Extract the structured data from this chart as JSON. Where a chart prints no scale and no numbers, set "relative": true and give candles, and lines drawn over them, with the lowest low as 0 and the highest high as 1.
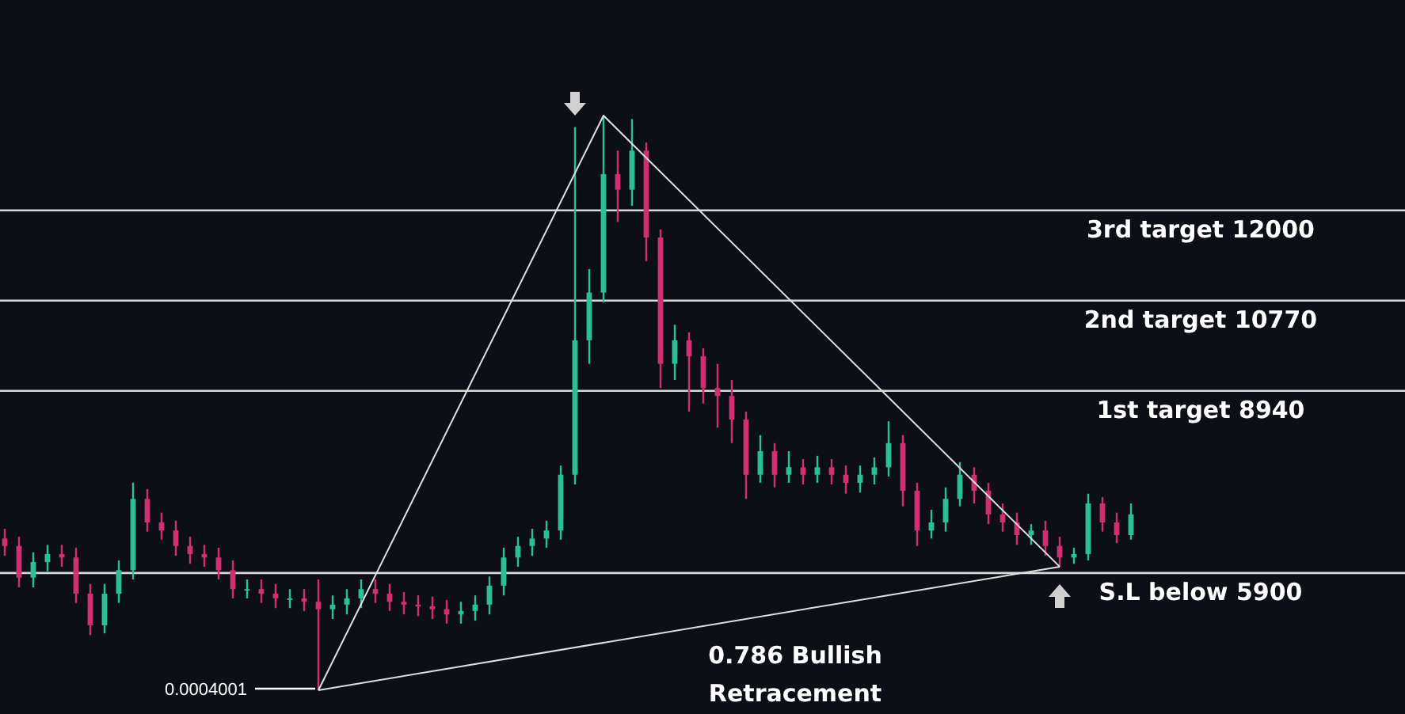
{
  "chart_data": {
    "type": "candlestick",
    "relative": true,
    "categories": [
      null,
      null,
      null,
      null,
      null,
      null,
      null,
      null,
      null,
      null,
      null,
      null,
      null,
      null,
      null,
      null,
      null,
      null,
      null,
      null,
      null,
      null,
      null,
      null,
      null,
      null,
      null,
      null,
      null,
      null,
      null,
      null,
      null,
      null,
      null,
      null,
      null,
      null,
      null,
      null,
      null,
      null,
      null,
      null,
      null,
      null,
      null,
      null,
      null,
      null,
      null,
      null,
      null,
      null,
      null,
      null,
      null,
      null,
      null,
      null,
      null,
      null,
      null,
      null,
      null,
      null,
      null,
      null,
      null,
      null,
      null,
      null,
      null,
      null,
      null,
      null,
      null,
      null,
      null,
      null
    ],
    "ohlc": [
      [
        0.264,
        0.281,
        0.234,
        0.251
      ],
      [
        0.251,
        0.267,
        0.179,
        0.196
      ],
      [
        0.196,
        0.24,
        0.179,
        0.223
      ],
      [
        0.223,
        0.253,
        0.207,
        0.237
      ],
      [
        0.237,
        0.253,
        0.215,
        0.231
      ],
      [
        0.231,
        0.248,
        0.152,
        0.168
      ],
      [
        0.168,
        0.185,
        0.096,
        0.113
      ],
      [
        0.113,
        0.185,
        0.099,
        0.168
      ],
      [
        0.168,
        0.226,
        0.152,
        0.209
      ],
      [
        0.209,
        0.361,
        0.193,
        0.333
      ],
      [
        0.333,
        0.35,
        0.276,
        0.292
      ],
      [
        0.292,
        0.309,
        0.262,
        0.278
      ],
      [
        0.278,
        0.295,
        0.234,
        0.251
      ],
      [
        0.251,
        0.267,
        0.22,
        0.237
      ],
      [
        0.237,
        0.253,
        0.215,
        0.231
      ],
      [
        0.231,
        0.248,
        0.193,
        0.209
      ],
      [
        0.209,
        0.226,
        0.16,
        0.176
      ],
      [
        0.176,
        0.193,
        0.16,
        0.176
      ],
      [
        0.176,
        0.193,
        0.152,
        0.168
      ],
      [
        0.168,
        0.185,
        0.143,
        0.16
      ],
      [
        0.16,
        0.176,
        0.143,
        0.16
      ],
      [
        0.16,
        0.176,
        0.138,
        0.154
      ],
      [
        0.154,
        0.193,
        0,
        0.141
      ],
      [
        0.141,
        0.165,
        0.124,
        0.149
      ],
      [
        0.149,
        0.176,
        0.132,
        0.16
      ],
      [
        0.16,
        0.193,
        0.143,
        0.176
      ],
      [
        0.176,
        0.193,
        0.152,
        0.168
      ],
      [
        0.168,
        0.185,
        0.138,
        0.154
      ],
      [
        0.154,
        0.171,
        0.132,
        0.149
      ],
      [
        0.149,
        0.165,
        0.129,
        0.146
      ],
      [
        0.146,
        0.163,
        0.124,
        0.141
      ],
      [
        0.141,
        0.157,
        0.116,
        0.132
      ],
      [
        0.132,
        0.154,
        0.116,
        0.138
      ],
      [
        0.138,
        0.165,
        0.121,
        0.149
      ],
      [
        0.149,
        0.198,
        0.132,
        0.182
      ],
      [
        0.182,
        0.248,
        0.165,
        0.231
      ],
      [
        0.231,
        0.267,
        0.215,
        0.251
      ],
      [
        0.251,
        0.281,
        0.234,
        0.264
      ],
      [
        0.264,
        0.295,
        0.248,
        0.278
      ],
      [
        0.278,
        0.391,
        0.262,
        0.375
      ],
      [
        0.375,
        0.98,
        0.358,
        0.609
      ],
      [
        0.609,
        0.733,
        0.568,
        0.692
      ],
      [
        0.692,
        1,
        0.675,
        0.898
      ],
      [
        0.898,
        0.939,
        0.815,
        0.871
      ],
      [
        0.871,
        0.994,
        0.843,
        0.939
      ],
      [
        0.939,
        0.953,
        0.747,
        0.788
      ],
      [
        0.788,
        0.802,
        0.526,
        0.568
      ],
      [
        0.568,
        0.636,
        0.54,
        0.609
      ],
      [
        0.609,
        0.623,
        0.485,
        0.581
      ],
      [
        0.581,
        0.595,
        0.499,
        0.526
      ],
      [
        0.526,
        0.568,
        0.457,
        0.512
      ],
      [
        0.512,
        0.54,
        0.43,
        0.471
      ],
      [
        0.471,
        0.485,
        0.333,
        0.375
      ],
      [
        0.375,
        0.444,
        0.361,
        0.416
      ],
      [
        0.416,
        0.43,
        0.353,
        0.375
      ],
      [
        0.375,
        0.416,
        0.361,
        0.388
      ],
      [
        0.388,
        0.402,
        0.358,
        0.375
      ],
      [
        0.375,
        0.408,
        0.361,
        0.388
      ],
      [
        0.388,
        0.402,
        0.358,
        0.375
      ],
      [
        0.375,
        0.391,
        0.342,
        0.361
      ],
      [
        0.361,
        0.391,
        0.344,
        0.375
      ],
      [
        0.375,
        0.405,
        0.358,
        0.388
      ],
      [
        0.388,
        0.468,
        0.372,
        0.43
      ],
      [
        0.43,
        0.444,
        0.32,
        0.347
      ],
      [
        0.347,
        0.361,
        0.251,
        0.278
      ],
      [
        0.278,
        0.314,
        0.264,
        0.292
      ],
      [
        0.292,
        0.353,
        0.276,
        0.333
      ],
      [
        0.333,
        0.397,
        0.32,
        0.375
      ],
      [
        0.375,
        0.388,
        0.325,
        0.347
      ],
      [
        0.347,
        0.361,
        0.289,
        0.306
      ],
      [
        0.306,
        0.325,
        0.276,
        0.292
      ],
      [
        0.292,
        0.309,
        0.253,
        0.27
      ],
      [
        0.27,
        0.289,
        0.253,
        0.278
      ],
      [
        0.278,
        0.295,
        0.234,
        0.251
      ],
      [
        0.251,
        0.267,
        0.215,
        0.231
      ],
      [
        0.231,
        0.248,
        0.22,
        0.237
      ],
      [
        0.237,
        0.342,
        0.226,
        0.325
      ],
      [
        0.325,
        0.336,
        0.276,
        0.292
      ],
      [
        0.292,
        0.309,
        0.256,
        0.27
      ],
      [
        0.27,
        0.325,
        0.262,
        0.306
      ]
    ],
    "ref_lines": [
      {
        "axis": "y",
        "value": 0.835,
        "label": "3rd target 12000"
      },
      {
        "axis": "y",
        "value": 0.678,
        "label": "2nd target 10770"
      },
      {
        "axis": "y",
        "value": 0.521,
        "label": "1st target 8940"
      },
      {
        "axis": "y",
        "value": 0.204,
        "label": "S.L below 5900"
      }
    ],
    "series": [
      {
        "type": "line",
        "color": "#e0e0e0",
        "values": [
          null,
          null,
          null,
          null,
          null,
          null,
          null,
          null,
          null,
          null,
          null,
          null,
          null,
          null,
          null,
          null,
          null,
          null,
          null,
          null,
          null,
          null,
          0,
          null,
          null,
          null,
          null,
          null,
          null,
          null,
          null,
          null,
          null,
          null,
          null,
          null,
          null,
          null,
          null,
          null,
          null,
          null,
          1,
          null,
          null,
          null,
          null,
          null,
          null,
          null,
          null,
          null,
          null,
          null,
          null,
          null,
          null,
          null,
          null,
          null,
          null,
          null,
          null,
          null,
          null,
          null,
          null,
          null,
          null,
          null,
          null,
          null,
          null,
          null,
          0.215,
          null,
          null,
          null,
          null,
          null
        ]
      },
      {
        "type": "line",
        "color": "#e0e0e0",
        "values": [
          null,
          null,
          null,
          null,
          null,
          null,
          null,
          null,
          null,
          null,
          null,
          null,
          null,
          null,
          null,
          null,
          null,
          null,
          null,
          null,
          null,
          null,
          0,
          null,
          null,
          null,
          null,
          null,
          null,
          null,
          null,
          null,
          null,
          null,
          null,
          null,
          null,
          null,
          null,
          null,
          null,
          null,
          null,
          null,
          null,
          null,
          null,
          null,
          null,
          null,
          null,
          null,
          null,
          null,
          null,
          null,
          null,
          null,
          null,
          null,
          null,
          null,
          null,
          null,
          null,
          null,
          null,
          null,
          null,
          null,
          null,
          null,
          null,
          null,
          0.215,
          null,
          null,
          null,
          null,
          null
        ]
      }
    ],
    "annotations": [
      "0.0004001",
      "0.786 Bullish Retracement"
    ]
  }
}
